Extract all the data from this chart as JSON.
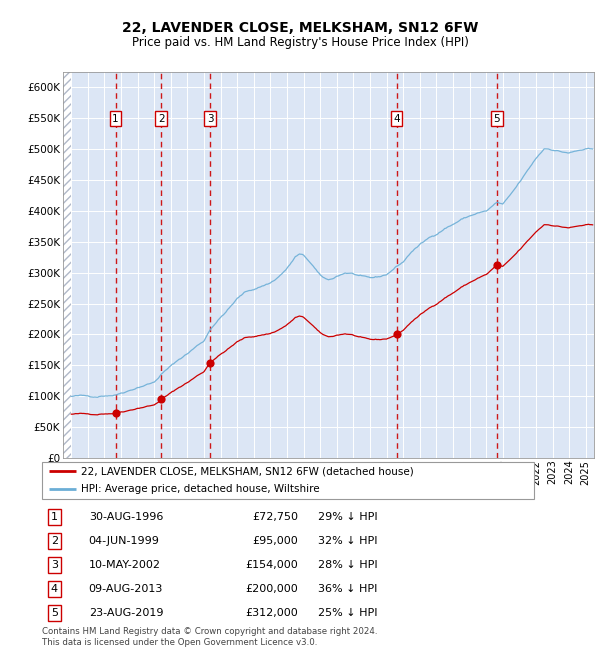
{
  "title": "22, LAVENDER CLOSE, MELKSHAM, SN12 6FW",
  "subtitle": "Price paid vs. HM Land Registry's House Price Index (HPI)",
  "footer": "Contains HM Land Registry data © Crown copyright and database right 2024.\nThis data is licensed under the Open Government Licence v3.0.",
  "legend_house": "22, LAVENDER CLOSE, MELKSHAM, SN12 6FW (detached house)",
  "legend_hpi": "HPI: Average price, detached house, Wiltshire",
  "transactions": [
    {
      "num": 1,
      "date": "30-AUG-1996",
      "year": 1996.666,
      "price": 72750,
      "pct": "29% ↓ HPI"
    },
    {
      "num": 2,
      "date": "04-JUN-1999",
      "year": 1999.416,
      "price": 95000,
      "pct": "32% ↓ HPI"
    },
    {
      "num": 3,
      "date": "10-MAY-2002",
      "year": 2002.36,
      "price": 154000,
      "pct": "28% ↓ HPI"
    },
    {
      "num": 4,
      "date": "09-AUG-2013",
      "year": 2013.6,
      "price": 200000,
      "pct": "36% ↓ HPI"
    },
    {
      "num": 5,
      "date": "23-AUG-2019",
      "year": 2019.64,
      "price": 312000,
      "pct": "25% ↓ HPI"
    }
  ],
  "hpi_color": "#6baed6",
  "price_color": "#cc0000",
  "vline_color": "#cc0000",
  "dot_color": "#cc0000",
  "bg_color": "#dce6f5",
  "ylim": [
    0,
    625000
  ],
  "yticks": [
    0,
    50000,
    100000,
    150000,
    200000,
    250000,
    300000,
    350000,
    400000,
    450000,
    500000,
    550000,
    600000
  ],
  "xlim_left": 1993.5,
  "xlim_right": 2025.5
}
